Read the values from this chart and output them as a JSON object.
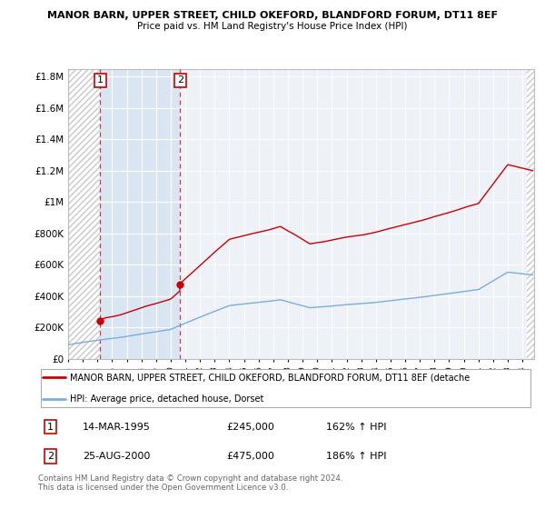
{
  "title1": "MANOR BARN, UPPER STREET, CHILD OKEFORD, BLANDFORD FORUM, DT11 8EF",
  "title2": "Price paid vs. HM Land Registry's House Price Index (HPI)",
  "legend_line1": "MANOR BARN, UPPER STREET, CHILD OKEFORD, BLANDFORD FORUM, DT11 8EF (detache",
  "legend_line2": "HPI: Average price, detached house, Dorset",
  "footnote": "Contains HM Land Registry data © Crown copyright and database right 2024.\nThis data is licensed under the Open Government Licence v3.0.",
  "p1_date": "14-MAR-1995",
  "p1_price": 245000,
  "p1_hpi": "162% ↑ HPI",
  "p1_year": 1995.2,
  "p2_date": "25-AUG-2000",
  "p2_price": 475000,
  "p2_hpi": "186% ↑ HPI",
  "p2_year": 2000.65,
  "red_color": "#cc0000",
  "blue_color": "#7aade0",
  "ylim": [
    0,
    1850000
  ],
  "xlim_start": 1993.0,
  "xlim_end": 2024.8,
  "yticks": [
    0,
    200000,
    400000,
    600000,
    800000,
    1000000,
    1200000,
    1400000,
    1600000,
    1800000
  ],
  "ylabels": [
    "£0",
    "£200K",
    "£400K",
    "£600K",
    "£800K",
    "£1M",
    "£1.2M",
    "£1.4M",
    "£1.6M",
    "£1.8M"
  ]
}
